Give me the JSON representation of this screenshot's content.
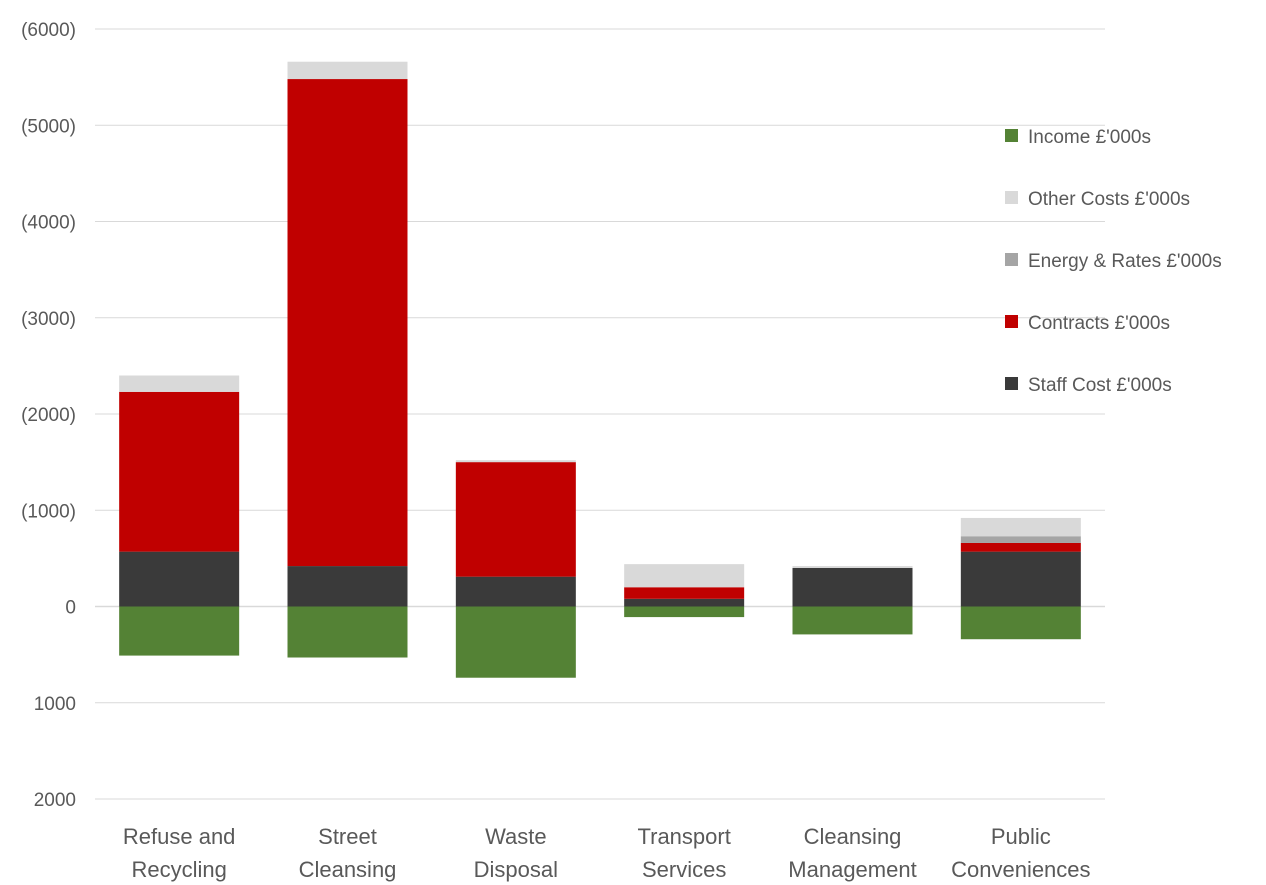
{
  "chart_data": {
    "type": "bar",
    "stacked": true,
    "title": "",
    "xlabel": "",
    "ylabel": "",
    "y_axis_direction": "inverted",
    "ylim": [
      2000,
      -6000
    ],
    "y_ticks": [
      "(6000)",
      "(5000)",
      "(4000)",
      "(3000)",
      "(2000)",
      "(1000)",
      "0",
      "1000",
      "2000"
    ],
    "y_tick_values": [
      -6000,
      -5000,
      -4000,
      -3000,
      -2000,
      -1000,
      0,
      1000,
      2000
    ],
    "grid": true,
    "legend_position": "right",
    "categories": [
      [
        "Refuse and",
        "Recycling"
      ],
      [
        "Street",
        "Cleansing"
      ],
      [
        "Waste",
        "Disposal"
      ],
      [
        "Transport",
        "Services"
      ],
      [
        "Cleansing",
        "Management"
      ],
      [
        "Public",
        "Conveniences"
      ]
    ],
    "series": [
      {
        "name": "Staff Cost £'000s",
        "color": "#3a3a3a",
        "values": [
          -570,
          -420,
          -310,
          -80,
          -400,
          -570
        ]
      },
      {
        "name": "Contracts £'000s",
        "color": "#c00000",
        "values": [
          -1660,
          -5060,
          -1190,
          -120,
          0,
          -90
        ]
      },
      {
        "name": "Energy & Rates £'000s",
        "color": "#a5a5a5",
        "values": [
          0,
          0,
          0,
          0,
          0,
          -70
        ]
      },
      {
        "name": "Other Costs £'000s",
        "color": "#d9d9d9",
        "values": [
          -170,
          -180,
          -20,
          -240,
          -20,
          -190
        ]
      },
      {
        "name": "Income £'000s",
        "color": "#548235",
        "values": [
          510,
          530,
          740,
          110,
          290,
          340
        ]
      }
    ],
    "legend_order": [
      "Income £'000s",
      "Other Costs £'000s",
      "Energy & Rates £'000s",
      "Contracts £'000s",
      "Staff Cost £'000s"
    ]
  }
}
